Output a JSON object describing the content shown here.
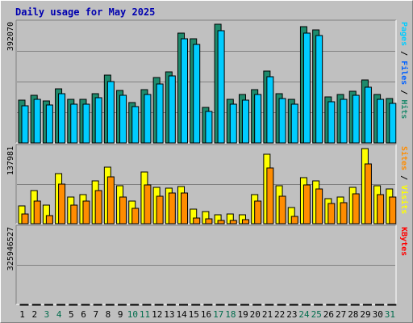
{
  "title": "Daily usage for May 2025",
  "colors": {
    "panel_bg": "#c0c0c0",
    "grid": "#808080",
    "title": "#0000b0",
    "hits": "#1e8a6c",
    "files": "#00ccff",
    "pages": "#00ccff",
    "visits": "#ffff00",
    "sites": "#ff8c00",
    "kbytes": "#ff0000",
    "weekend_label": "#006c4c",
    "weekday_label": "#000000"
  },
  "chart_data": [
    {
      "type": "bar",
      "panel": "top",
      "ymax_label": "392070",
      "ylim": [
        0,
        392070
      ],
      "right_label_parts": [
        {
          "text": "Pages",
          "color": "#00ccff"
        },
        {
          "text": " / ",
          "color": "#000000"
        },
        {
          "text": "Files",
          "color": "#0060ff"
        },
        {
          "text": " / ",
          "color": "#000000"
        },
        {
          "text": "Hits",
          "color": "#1e8a6c"
        }
      ],
      "categories": [
        "1",
        "2",
        "3",
        "4",
        "5",
        "6",
        "7",
        "8",
        "9",
        "10",
        "11",
        "12",
        "13",
        "14",
        "15",
        "16",
        "17",
        "18",
        "19",
        "20",
        "21",
        "22",
        "23",
        "24",
        "25",
        "26",
        "27",
        "28",
        "29",
        "30",
        "31"
      ],
      "series": [
        {
          "name": "Hits",
          "values": [
            137200,
            153000,
            135000,
            174000,
            140600,
            140600,
            159500,
            217400,
            169400,
            130600,
            170300,
            209300,
            229700,
            352400,
            334900,
            114900,
            380900,
            141400,
            155800,
            171900,
            230600,
            159500,
            140900,
            372600,
            362800,
            149000,
            155800,
            167300,
            202400,
            154900,
            142500
          ]
        },
        {
          "name": "Files",
          "values": [
            127500,
            147500,
            129900,
            167300,
            133700,
            132800,
            152600,
            204900,
            161600,
            124600,
            162900,
            198300,
            223500,
            342200,
            323900,
            108800,
            369600,
            133700,
            146600,
            163800,
            219900,
            150600,
            132800,
            361800,
            352000,
            140600,
            147500,
            160400,
            188000,
            147500,
            134300
          ]
        }
      ],
      "weekend_days": [
        3,
        4,
        10,
        11,
        17,
        18,
        24,
        25,
        31
      ]
    },
    {
      "type": "bar",
      "panel": "middle",
      "ymax_label": "137981",
      "ylim": [
        0,
        137981
      ],
      "right_label_parts": [
        {
          "text": "Sites",
          "color": "#ff8c00"
        },
        {
          "text": " / ",
          "color": "#000000"
        },
        {
          "text": "Visits",
          "color": "#ffff00"
        }
      ],
      "categories": [
        "1",
        "2",
        "3",
        "4",
        "5",
        "6",
        "7",
        "8",
        "9",
        "10",
        "11",
        "12",
        "13",
        "14",
        "15",
        "16",
        "17",
        "18",
        "19",
        "20",
        "21",
        "22",
        "23",
        "24",
        "25",
        "26",
        "27",
        "28",
        "29",
        "30",
        "31"
      ],
      "series": [
        {
          "name": "Visits",
          "values": [
            32000,
            58000,
            32300,
            88400,
            46400,
            51700,
            74900,
            98900,
            66900,
            39700,
            90600,
            64300,
            62600,
            65500,
            24900,
            21300,
            16000,
            16600,
            15300,
            51400,
            122300,
            67400,
            28200,
            81100,
            75800,
            43700,
            46400,
            64300,
            132600,
            67400,
            60600
          ]
        },
        {
          "name": "Sites",
          "values": [
            20700,
            44500,
            18900,
            73400,
            37500,
            43500,
            62400,
            86700,
            51400,
            30900,
            72600,
            52600,
            58900,
            57700,
            14500,
            13500,
            10600,
            10600,
            11600,
            43500,
            102400,
            52600,
            17200,
            72600,
            65800,
            39600,
            40900,
            56200,
            109800,
            55200,
            51800
          ]
        }
      ]
    },
    {
      "type": "bar",
      "panel": "bottom",
      "ymax_label": "325946527",
      "ylim": [
        0,
        325946527
      ],
      "right_label_parts": [
        {
          "text": "KBytes",
          "color": "#ff0000"
        }
      ],
      "categories": [
        "1",
        "2",
        "3",
        "4",
        "5",
        "6",
        "7",
        "8",
        "9",
        "10",
        "11",
        "12",
        "13",
        "14",
        "15",
        "16",
        "17",
        "18",
        "19",
        "20",
        "21",
        "22",
        "23",
        "24",
        "25",
        "26",
        "27",
        "28",
        "29",
        "30",
        "31"
      ],
      "series": [
        {
          "name": "KBytes",
          "values": [
            123000,
            51300,
            130200,
            148200,
            199200,
            72000,
            29300,
            45200,
            33800,
            33700,
            324900,
            238700,
            32400,
            31000,
            81700,
            33700,
            40900,
            35300,
            31400,
            33700,
            89200,
            19600,
            19600,
            54800,
            30700,
            30700,
            30700,
            30700,
            30700,
            22300,
            30700
          ]
        }
      ]
    }
  ]
}
